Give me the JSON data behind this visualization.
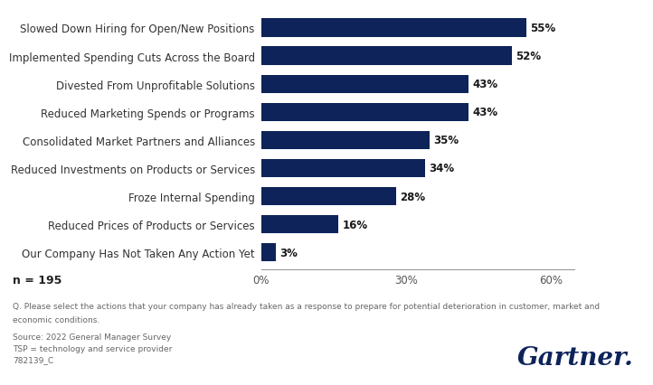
{
  "categories": [
    "Our Company Has Not Taken Any Action Yet",
    "Reduced Prices of Products or Services",
    "Froze Internal Spending",
    "Reduced Investments on Products or Services",
    "Consolidated Market Partners and Alliances",
    "Reduced Marketing Spends or Programs",
    "Divested From Unprofitable Solutions",
    "Implemented Spending Cuts Across the Board",
    "Slowed Down Hiring for Open/New Positions"
  ],
  "values": [
    3,
    16,
    28,
    34,
    35,
    43,
    43,
    52,
    55
  ],
  "bar_color": "#0d2359",
  "label_color": "#1a1a1a",
  "background_color": "#ffffff",
  "xlim": [
    0,
    65
  ],
  "xticks": [
    0,
    30,
    60
  ],
  "xtick_labels": [
    "0%",
    "30%",
    "60%"
  ],
  "n_label": "n = 195",
  "footnote_q": "Q. Please select the actions that your company has already taken as a response to prepare for potential deterioration in customer, market and",
  "footnote_q2": "economic conditions.",
  "footnote_source": "Source: 2022 General Manager Survey",
  "footnote_tsp": "TSP = technology and service provider",
  "footnote_id": "782139_C",
  "gartner_text": "Gartner.",
  "bar_height": 0.65,
  "value_label_fontsize": 8.5,
  "category_fontsize": 8.5,
  "tick_fontsize": 8.5,
  "footnote_fontsize": 6.5,
  "n_fontsize": 9
}
